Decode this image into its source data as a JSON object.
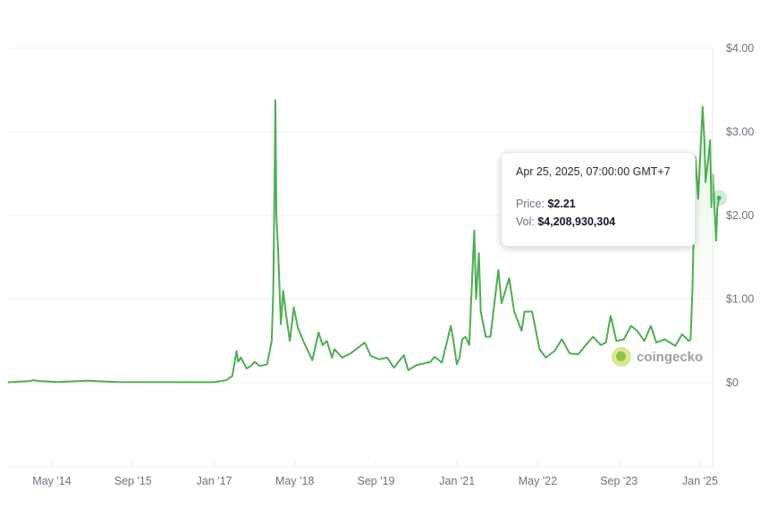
{
  "chart_data": {
    "type": "area",
    "title": "",
    "xlabel": "",
    "ylabel": "",
    "ylim": [
      0,
      4
    ],
    "y_ticks": [
      "$0",
      "$1.00",
      "$2.00",
      "$3.00",
      "$4.00"
    ],
    "y_tick_values": [
      0,
      1,
      2,
      3,
      4
    ],
    "x_ticks": [
      "May '14",
      "Sep '15",
      "Jan '17",
      "May '18",
      "Sep '19",
      "Jan '21",
      "May '22",
      "Sep '23",
      "Jan '25"
    ],
    "x_tick_dates": [
      "2014-05-01",
      "2015-09-01",
      "2017-01-01",
      "2018-05-01",
      "2019-09-01",
      "2021-01-01",
      "2022-05-01",
      "2023-09-01",
      "2025-01-01"
    ],
    "x_range": [
      "2013-08-10",
      "2025-04-25"
    ],
    "y_axis_position": "right",
    "grid": true,
    "line_color": "#4caf50",
    "fill_color": "#e8f5e4",
    "series": [
      {
        "points": [
          [
            "2013-08-10",
            0.005
          ],
          [
            "2013-12-20",
            0.02
          ],
          [
            "2014-01-10",
            0.03
          ],
          [
            "2014-02-15",
            0.02
          ],
          [
            "2014-06-01",
            0.008
          ],
          [
            "2014-12-01",
            0.025
          ],
          [
            "2015-06-01",
            0.008
          ],
          [
            "2016-06-01",
            0.006
          ],
          [
            "2017-01-01",
            0.006
          ],
          [
            "2017-03-15",
            0.03
          ],
          [
            "2017-04-20",
            0.08
          ],
          [
            "2017-05-16",
            0.38
          ],
          [
            "2017-05-25",
            0.25
          ],
          [
            "2017-06-10",
            0.3
          ],
          [
            "2017-07-15",
            0.17
          ],
          [
            "2017-08-10",
            0.2
          ],
          [
            "2017-09-01",
            0.25
          ],
          [
            "2017-10-01",
            0.2
          ],
          [
            "2017-11-15",
            0.22
          ],
          [
            "2017-12-13",
            0.5
          ],
          [
            "2017-12-22",
            1.1
          ],
          [
            "2017-12-30",
            2.3
          ],
          [
            "2018-01-04",
            3.38
          ],
          [
            "2018-01-10",
            2.0
          ],
          [
            "2018-01-20",
            1.6
          ],
          [
            "2018-02-06",
            0.7
          ],
          [
            "2018-02-20",
            1.1
          ],
          [
            "2018-03-10",
            0.8
          ],
          [
            "2018-04-01",
            0.5
          ],
          [
            "2018-04-25",
            0.9
          ],
          [
            "2018-05-20",
            0.65
          ],
          [
            "2018-06-25",
            0.48
          ],
          [
            "2018-08-14",
            0.27
          ],
          [
            "2018-09-21",
            0.6
          ],
          [
            "2018-10-15",
            0.45
          ],
          [
            "2018-11-10",
            0.5
          ],
          [
            "2018-12-10",
            0.3
          ],
          [
            "2018-12-25",
            0.4
          ],
          [
            "2019-02-10",
            0.3
          ],
          [
            "2019-04-01",
            0.35
          ],
          [
            "2019-06-25",
            0.48
          ],
          [
            "2019-08-01",
            0.32
          ],
          [
            "2019-09-20",
            0.28
          ],
          [
            "2019-11-07",
            0.3
          ],
          [
            "2019-12-18",
            0.18
          ],
          [
            "2020-02-15",
            0.33
          ],
          [
            "2020-03-13",
            0.15
          ],
          [
            "2020-05-01",
            0.21
          ],
          [
            "2020-07-25",
            0.25
          ],
          [
            "2020-08-18",
            0.31
          ],
          [
            "2020-10-01",
            0.24
          ],
          [
            "2020-11-24",
            0.68
          ],
          [
            "2020-12-10",
            0.5
          ],
          [
            "2020-12-30",
            0.22
          ],
          [
            "2021-01-15",
            0.3
          ],
          [
            "2021-02-01",
            0.52
          ],
          [
            "2021-02-20",
            0.55
          ],
          [
            "2021-03-15",
            0.45
          ],
          [
            "2021-04-14",
            1.82
          ],
          [
            "2021-04-25",
            1.0
          ],
          [
            "2021-05-12",
            1.55
          ],
          [
            "2021-05-23",
            0.85
          ],
          [
            "2021-06-22",
            0.55
          ],
          [
            "2021-07-20",
            0.55
          ],
          [
            "2021-09-06",
            1.35
          ],
          [
            "2021-09-25",
            0.95
          ],
          [
            "2021-11-10",
            1.25
          ],
          [
            "2021-12-10",
            0.85
          ],
          [
            "2022-01-24",
            0.62
          ],
          [
            "2022-02-10",
            0.85
          ],
          [
            "2022-03-28",
            0.85
          ],
          [
            "2022-05-12",
            0.4
          ],
          [
            "2022-06-18",
            0.3
          ],
          [
            "2022-08-10",
            0.38
          ],
          [
            "2022-09-23",
            0.52
          ],
          [
            "2022-11-09",
            0.35
          ],
          [
            "2022-12-30",
            0.34
          ],
          [
            "2023-02-01",
            0.42
          ],
          [
            "2023-03-29",
            0.55
          ],
          [
            "2023-05-15",
            0.45
          ],
          [
            "2023-06-15",
            0.48
          ],
          [
            "2023-07-13",
            0.8
          ],
          [
            "2023-07-25",
            0.7
          ],
          [
            "2023-08-17",
            0.5
          ],
          [
            "2023-10-01",
            0.52
          ],
          [
            "2023-11-13",
            0.68
          ],
          [
            "2023-12-20",
            0.62
          ],
          [
            "2024-02-01",
            0.5
          ],
          [
            "2024-03-11",
            0.68
          ],
          [
            "2024-04-13",
            0.48
          ],
          [
            "2024-06-01",
            0.52
          ],
          [
            "2024-08-05",
            0.44
          ],
          [
            "2024-09-15",
            0.58
          ],
          [
            "2024-10-25",
            0.5
          ],
          [
            "2024-11-05",
            0.52
          ],
          [
            "2024-11-16",
            1.1
          ],
          [
            "2024-12-03",
            2.7
          ],
          [
            "2024-12-20",
            2.2
          ],
          [
            "2025-01-16",
            3.3
          ],
          [
            "2025-01-27",
            2.9
          ],
          [
            "2025-02-03",
            2.4
          ],
          [
            "2025-02-20",
            2.7
          ],
          [
            "2025-03-02",
            2.9
          ],
          [
            "2025-03-10",
            2.1
          ],
          [
            "2025-03-19",
            2.5
          ],
          [
            "2025-04-07",
            1.7
          ],
          [
            "2025-04-15",
            2.1
          ],
          [
            "2025-04-25",
            2.21
          ]
        ]
      }
    ]
  },
  "tooltip": {
    "date": "Apr 25, 2025, 07:00:00 GMT+7",
    "price_label": "Price:",
    "price_value": "$2.21",
    "price": 2.21,
    "vol_label": "Vol:",
    "vol_value": "$4,208,930,304"
  },
  "watermark": "coingecko"
}
